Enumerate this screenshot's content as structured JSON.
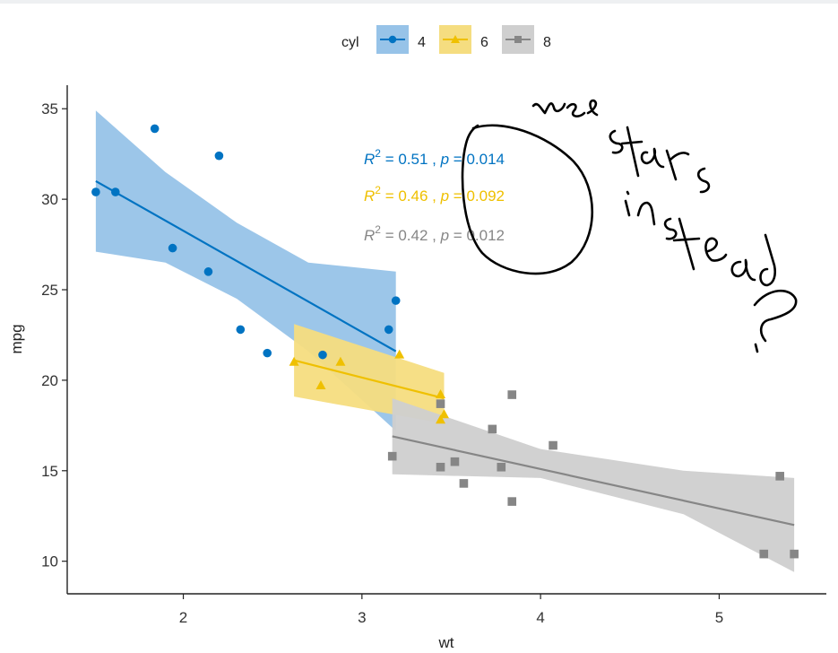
{
  "chart_data": {
    "type": "scatter",
    "xlabel": "wt",
    "ylabel": "mpg",
    "xlim": [
      1.35,
      5.6
    ],
    "ylim": [
      8.2,
      36.3
    ],
    "xticks": [
      2,
      3,
      4,
      5
    ],
    "yticks": [
      10,
      15,
      20,
      25,
      30,
      35
    ],
    "grid": false,
    "legend": {
      "title": "cyl",
      "position": "top",
      "items": [
        "4",
        "6",
        "8"
      ]
    },
    "series": [
      {
        "name": "4",
        "color": "#0073C2",
        "fill": "#97c3e8",
        "marker": "circle",
        "x": [
          1.51,
          1.62,
          1.84,
          1.94,
          2.14,
          2.2,
          2.32,
          2.47,
          2.78,
          3.15,
          3.19
        ],
        "y": [
          30.4,
          30.4,
          33.9,
          27.3,
          26.0,
          32.4,
          22.8,
          21.5,
          21.4,
          22.8,
          24.4
        ],
        "fit": [
          [
            1.51,
            31.0
          ],
          [
            3.19,
            21.6
          ]
        ],
        "band": {
          "x": [
            1.51,
            1.9,
            2.3,
            2.7,
            3.19
          ],
          "lower": [
            27.1,
            26.5,
            24.5,
            21.6,
            17.2
          ],
          "upper": [
            34.9,
            31.5,
            28.7,
            26.5,
            26.0
          ]
        },
        "stat": {
          "r2": "0.51",
          "p": "0.014"
        }
      },
      {
        "name": "6",
        "color": "#EFC000",
        "fill": "#f5dd80",
        "marker": "triangle",
        "x": [
          2.62,
          2.77,
          2.88,
          3.21,
          3.44,
          3.44,
          3.46
        ],
        "y": [
          21.0,
          19.7,
          21.0,
          21.4,
          19.2,
          17.8,
          18.1
        ],
        "fit": [
          [
            2.62,
            21.1
          ],
          [
            3.46,
            19.0
          ]
        ],
        "band": {
          "x": [
            2.62,
            3.46
          ],
          "lower": [
            19.1,
            17.6
          ],
          "upper": [
            23.1,
            20.4
          ]
        },
        "stat": {
          "r2": "0.46",
          "p": "0.092"
        }
      },
      {
        "name": "8",
        "color": "#868686",
        "fill": "#cfcfcf",
        "marker": "square",
        "x": [
          3.17,
          3.44,
          3.52,
          3.57,
          3.73,
          3.78,
          3.84,
          3.84,
          3.44,
          4.07,
          5.25,
          5.34,
          5.42
        ],
        "y": [
          15.8,
          18.7,
          15.5,
          14.3,
          17.3,
          15.2,
          13.3,
          19.2,
          15.2,
          16.4,
          10.4,
          14.7,
          10.4
        ],
        "fit": [
          [
            3.17,
            16.9
          ],
          [
            5.42,
            12.0
          ]
        ],
        "band": {
          "x": [
            3.17,
            4.0,
            4.8,
            5.42
          ],
          "lower": [
            14.8,
            14.6,
            12.6,
            9.4
          ],
          "upper": [
            19.0,
            16.2,
            15.0,
            14.6
          ]
        },
        "stat": {
          "r2": "0.42",
          "p": "0.012"
        }
      }
    ]
  },
  "annotation": {
    "text": "use stars instead ?"
  }
}
